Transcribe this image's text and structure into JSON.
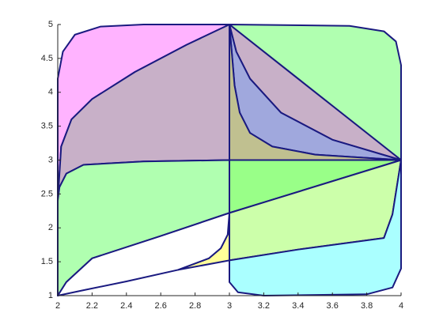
{
  "chart_data": {
    "type": "patch",
    "xlim": [
      2,
      4
    ],
    "ylim": [
      1,
      5
    ],
    "xticks": [
      2,
      2.2,
      2.4,
      2.6,
      2.8,
      3,
      3.2,
      3.4,
      3.6,
      3.8,
      4
    ],
    "yticks": [
      1,
      1.5,
      2,
      2.5,
      3,
      3.5,
      4,
      4.5,
      5
    ],
    "edge_color": "#1a1a80",
    "series": [
      {
        "color": "#ffb3ff",
        "x": [
          2,
          2,
          2.03,
          2.1,
          2.25,
          2.5,
          3,
          2.75,
          2.45,
          2.2,
          2.08,
          2.02,
          2
        ],
        "y": [
          2.4,
          4.2,
          4.6,
          4.85,
          4.97,
          5,
          5,
          4.7,
          4.3,
          3.9,
          3.6,
          3.2,
          2.4
        ]
      },
      {
        "color": "#c8b0c8",
        "x": [
          2,
          2.02,
          2.08,
          2.2,
          2.45,
          2.75,
          3,
          3,
          2.5,
          2.15,
          2.05,
          2.01,
          2
        ],
        "y": [
          2.4,
          3.2,
          3.6,
          3.9,
          4.3,
          4.7,
          5,
          3,
          2.98,
          2.93,
          2.8,
          2.6,
          2.4
        ]
      },
      {
        "color": "#b0ffb0",
        "x": [
          3,
          3.7,
          3.9,
          3.97,
          4,
          4,
          3.6,
          3.3,
          3
        ],
        "y": [
          5,
          4.98,
          4.9,
          4.75,
          4.4,
          3,
          3.8,
          4.4,
          5
        ]
      },
      {
        "color": "#c8b0c8",
        "x": [
          3,
          3.3,
          3.6,
          4,
          3.6,
          3.3,
          3.12,
          3.04,
          3
        ],
        "y": [
          5,
          4.4,
          3.8,
          3,
          3.3,
          3.7,
          4.2,
          4.6,
          5
        ]
      },
      {
        "color": "#a0a8dd",
        "x": [
          3,
          3.04,
          3.12,
          3.3,
          3.6,
          4,
          3.5,
          3.25,
          3.12,
          3.06,
          3.03,
          3
        ],
        "y": [
          5,
          4.6,
          4.2,
          3.7,
          3.3,
          3,
          3.08,
          3.2,
          3.4,
          3.7,
          4.1,
          5
        ]
      },
      {
        "color": "#c0c090",
        "x": [
          3,
          3.03,
          3.06,
          3.12,
          3.25,
          3.5,
          4,
          3
        ],
        "y": [
          5,
          4.1,
          3.7,
          3.4,
          3.2,
          3.08,
          3,
          3
        ]
      },
      {
        "color": "#b0ffb0",
        "x": [
          2,
          2,
          2.01,
          2.05,
          2.15,
          2.5,
          3,
          3,
          2.6,
          2.2,
          2.05
        ],
        "y": [
          1,
          2.4,
          2.6,
          2.8,
          2.93,
          2.98,
          3,
          2.22,
          1.88,
          1.55,
          1.2
        ]
      },
      {
        "color": "#99ff88",
        "x": [
          3,
          4,
          3
        ],
        "y": [
          3,
          3,
          2.22
        ]
      },
      {
        "color": "#ccffaa",
        "x": [
          3,
          4,
          3.95,
          3.9,
          3.4,
          3
        ],
        "y": [
          2.22,
          3,
          2.2,
          1.85,
          1.68,
          1.52
        ]
      },
      {
        "color": "#ffff99",
        "x": [
          2.7,
          2.88,
          2.95,
          2.99,
          3,
          3
        ],
        "y": [
          1.38,
          1.55,
          1.7,
          1.9,
          2.22,
          1.52
        ]
      },
      {
        "color": "#ffffff",
        "x": [
          2,
          2.05,
          2.2,
          2.6,
          3,
          2.99,
          2.95,
          2.88,
          2.7,
          2.4,
          2.15,
          2
        ],
        "y": [
          1,
          1.2,
          1.55,
          1.88,
          2.22,
          1.9,
          1.7,
          1.55,
          1.38,
          1.21,
          1.08,
          1
        ]
      },
      {
        "color": "#aaffff",
        "x": [
          3,
          3,
          3.05,
          3.2,
          3.8,
          3.95,
          4,
          4,
          3.95,
          3.9,
          3.4
        ],
        "y": [
          1.52,
          1.2,
          1.05,
          1,
          1.02,
          1.12,
          1.4,
          3,
          2.2,
          1.85,
          1.68
        ]
      }
    ]
  }
}
